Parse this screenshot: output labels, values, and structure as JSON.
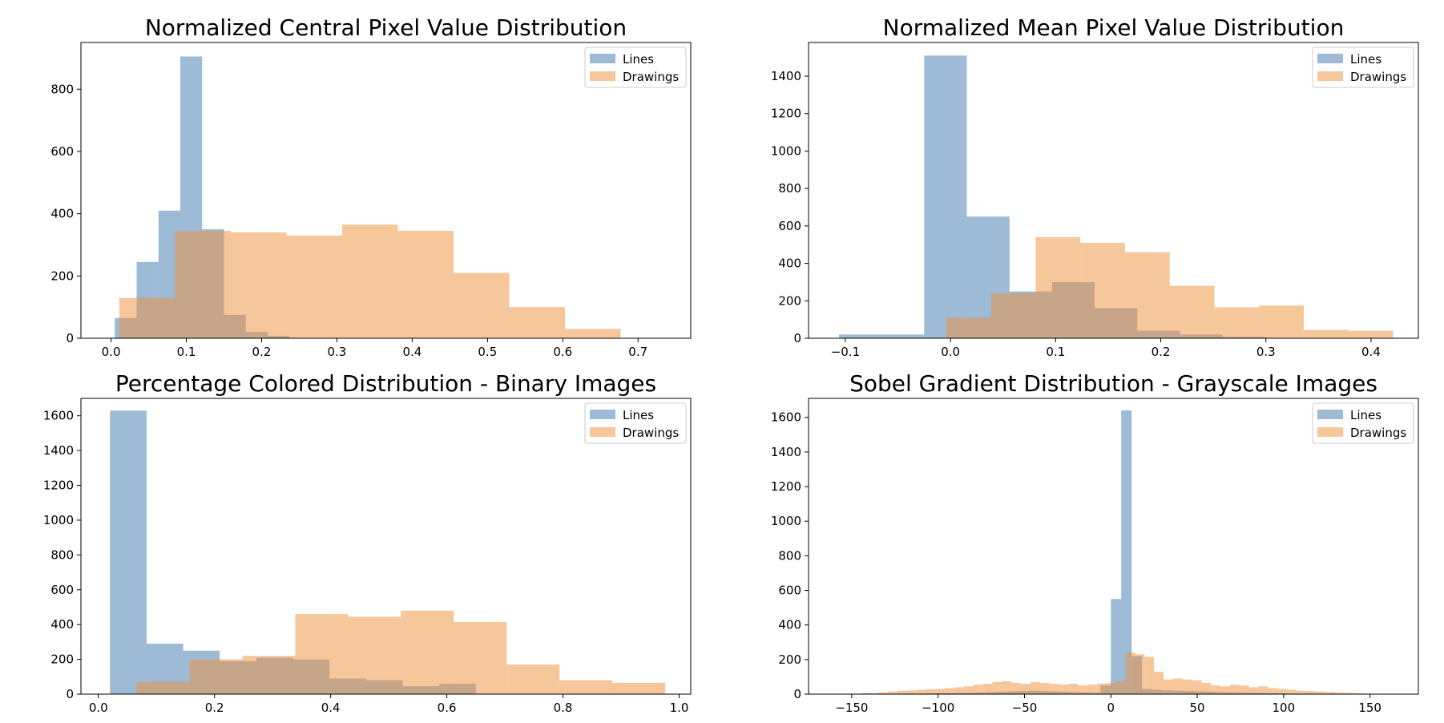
{
  "colors": {
    "lines": "#3b75af",
    "drawings": "#f0903a"
  },
  "chart_data": [
    {
      "type": "histogram",
      "title": "Normalized Central Pixel Value Distribution",
      "xlim": [
        -0.04,
        0.77
      ],
      "ylim": [
        0,
        950
      ],
      "xticks": [
        0.0,
        0.1,
        0.2,
        0.3,
        0.4,
        0.5,
        0.6,
        0.7
      ],
      "xtick_labels": [
        "0.0",
        "0.1",
        "0.2",
        "0.3",
        "0.4",
        "0.5",
        "0.6",
        "0.7"
      ],
      "yticks": [
        0,
        200,
        400,
        600,
        800
      ],
      "ytick_labels": [
        "0",
        "200",
        "400",
        "600",
        "800"
      ],
      "legend": {
        "position": "top-right",
        "entries": [
          "Lines",
          "Drawings"
        ]
      },
      "series": [
        {
          "name": "Lines",
          "edges": [
            0.005,
            0.034,
            0.063,
            0.092,
            0.121,
            0.15,
            0.179,
            0.208,
            0.237,
            0.266
          ],
          "counts": [
            65,
            245,
            410,
            905,
            350,
            75,
            20,
            8,
            0
          ]
        },
        {
          "name": "Drawings",
          "edges": [
            0.011,
            0.085,
            0.159,
            0.233,
            0.307,
            0.381,
            0.455,
            0.529,
            0.603,
            0.677,
            0.751
          ],
          "counts": [
            130,
            345,
            340,
            330,
            365,
            345,
            210,
            100,
            30,
            0
          ]
        }
      ]
    },
    {
      "type": "histogram",
      "title": "Normalized Mean Pixel Value Distribution",
      "xlim": [
        -0.135,
        0.445
      ],
      "ylim": [
        0,
        1580
      ],
      "xticks": [
        -0.1,
        0.0,
        0.1,
        0.2,
        0.3,
        0.4
      ],
      "xtick_labels": [
        "−0.1",
        "0.0",
        "0.1",
        "0.2",
        "0.3",
        "0.4"
      ],
      "yticks": [
        0,
        200,
        400,
        600,
        800,
        1000,
        1200,
        1400
      ],
      "ytick_labels": [
        "0",
        "200",
        "400",
        "600",
        "800",
        "1000",
        "1200",
        "1400"
      ],
      "legend": {
        "position": "top-right",
        "entries": [
          "Lines",
          "Drawings"
        ]
      },
      "series": [
        {
          "name": "Lines",
          "edges": [
            -0.106,
            -0.025,
            0.0155,
            0.0561,
            0.0966,
            0.1371,
            0.1777,
            0.2182,
            0.2587,
            0.2993
          ],
          "counts": [
            20,
            1510,
            650,
            250,
            300,
            160,
            40,
            20,
            8
          ]
        },
        {
          "name": "Drawings",
          "edges": [
            -0.004,
            0.0385,
            0.081,
            0.1235,
            0.166,
            0.2085,
            0.251,
            0.2935,
            0.336,
            0.3785,
            0.421
          ],
          "counts": [
            110,
            240,
            540,
            510,
            460,
            280,
            165,
            175,
            45,
            40
          ]
        }
      ]
    },
    {
      "type": "histogram",
      "title": "Percentage Colored Distribution - Binary Images",
      "xlim": [
        -0.03,
        1.02
      ],
      "ylim": [
        0,
        1700
      ],
      "xticks": [
        0.0,
        0.2,
        0.4,
        0.6,
        0.8,
        1.0
      ],
      "xtick_labels": [
        "0.0",
        "0.2",
        "0.4",
        "0.6",
        "0.8",
        "1.0"
      ],
      "yticks": [
        0,
        200,
        400,
        600,
        800,
        1000,
        1200,
        1400,
        1600
      ],
      "ytick_labels": [
        "0",
        "200",
        "400",
        "600",
        "800",
        "1000",
        "1200",
        "1400",
        "1600"
      ],
      "legend": {
        "position": "top-right",
        "entries": [
          "Lines",
          "Drawings"
        ]
      },
      "series": [
        {
          "name": "Lines",
          "edges": [
            0.02,
            0.083,
            0.146,
            0.209,
            0.272,
            0.335,
            0.398,
            0.461,
            0.524,
            0.587,
            0.65
          ],
          "counts": [
            1630,
            290,
            250,
            190,
            210,
            200,
            90,
            80,
            45,
            60
          ]
        },
        {
          "name": "Drawings",
          "edges": [
            0.066,
            0.157,
            0.248,
            0.339,
            0.43,
            0.521,
            0.612,
            0.703,
            0.794,
            0.885,
            0.976
          ],
          "counts": [
            70,
            200,
            220,
            460,
            445,
            480,
            415,
            170,
            80,
            65
          ]
        }
      ]
    },
    {
      "type": "histogram",
      "title": "Sobel Gradient Distribution - Grayscale Images",
      "xlim": [
        -175,
        178
      ],
      "ylim": [
        0,
        1710
      ],
      "xticks": [
        -150,
        -100,
        -50,
        0,
        50,
        100,
        150
      ],
      "xtick_labels": [
        "−150",
        "−100",
        "−50",
        "0",
        "50",
        "100",
        "150"
      ],
      "yticks": [
        0,
        200,
        400,
        600,
        800,
        1000,
        1200,
        1400,
        1600
      ],
      "ytick_labels": [
        "0",
        "200",
        "400",
        "600",
        "800",
        "1000",
        "1200",
        "1400",
        "1600"
      ],
      "legend": {
        "position": "top-right",
        "entries": [
          "Lines",
          "Drawings"
        ]
      },
      "series": [
        {
          "name": "Lines",
          "x_start": -150,
          "bin_width": 6,
          "counts": [
            0,
            5,
            3,
            2,
            3,
            4,
            4,
            5,
            6,
            5,
            7,
            8,
            10,
            12,
            14,
            16,
            18,
            20,
            18,
            16,
            14,
            12,
            10,
            8,
            50,
            550,
            1640,
            220,
            30,
            25,
            22,
            20,
            18,
            16,
            14,
            12,
            10,
            9,
            8,
            7,
            6,
            5,
            4,
            3,
            2,
            2,
            1,
            1,
            1,
            0
          ]
        },
        {
          "name": "Drawings",
          "x_start": -140,
          "bin_width": 5.5,
          "counts": [
            5,
            10,
            15,
            20,
            22,
            25,
            28,
            30,
            35,
            40,
            45,
            55,
            60,
            70,
            75,
            65,
            60,
            70,
            65,
            60,
            55,
            60,
            50,
            55,
            60,
            65,
            75,
            240,
            230,
            215,
            130,
            85,
            90,
            85,
            80,
            65,
            50,
            45,
            55,
            50,
            40,
            45,
            35,
            30,
            25,
            20,
            18,
            15,
            12,
            10,
            8,
            5,
            3
          ]
        }
      ]
    }
  ]
}
